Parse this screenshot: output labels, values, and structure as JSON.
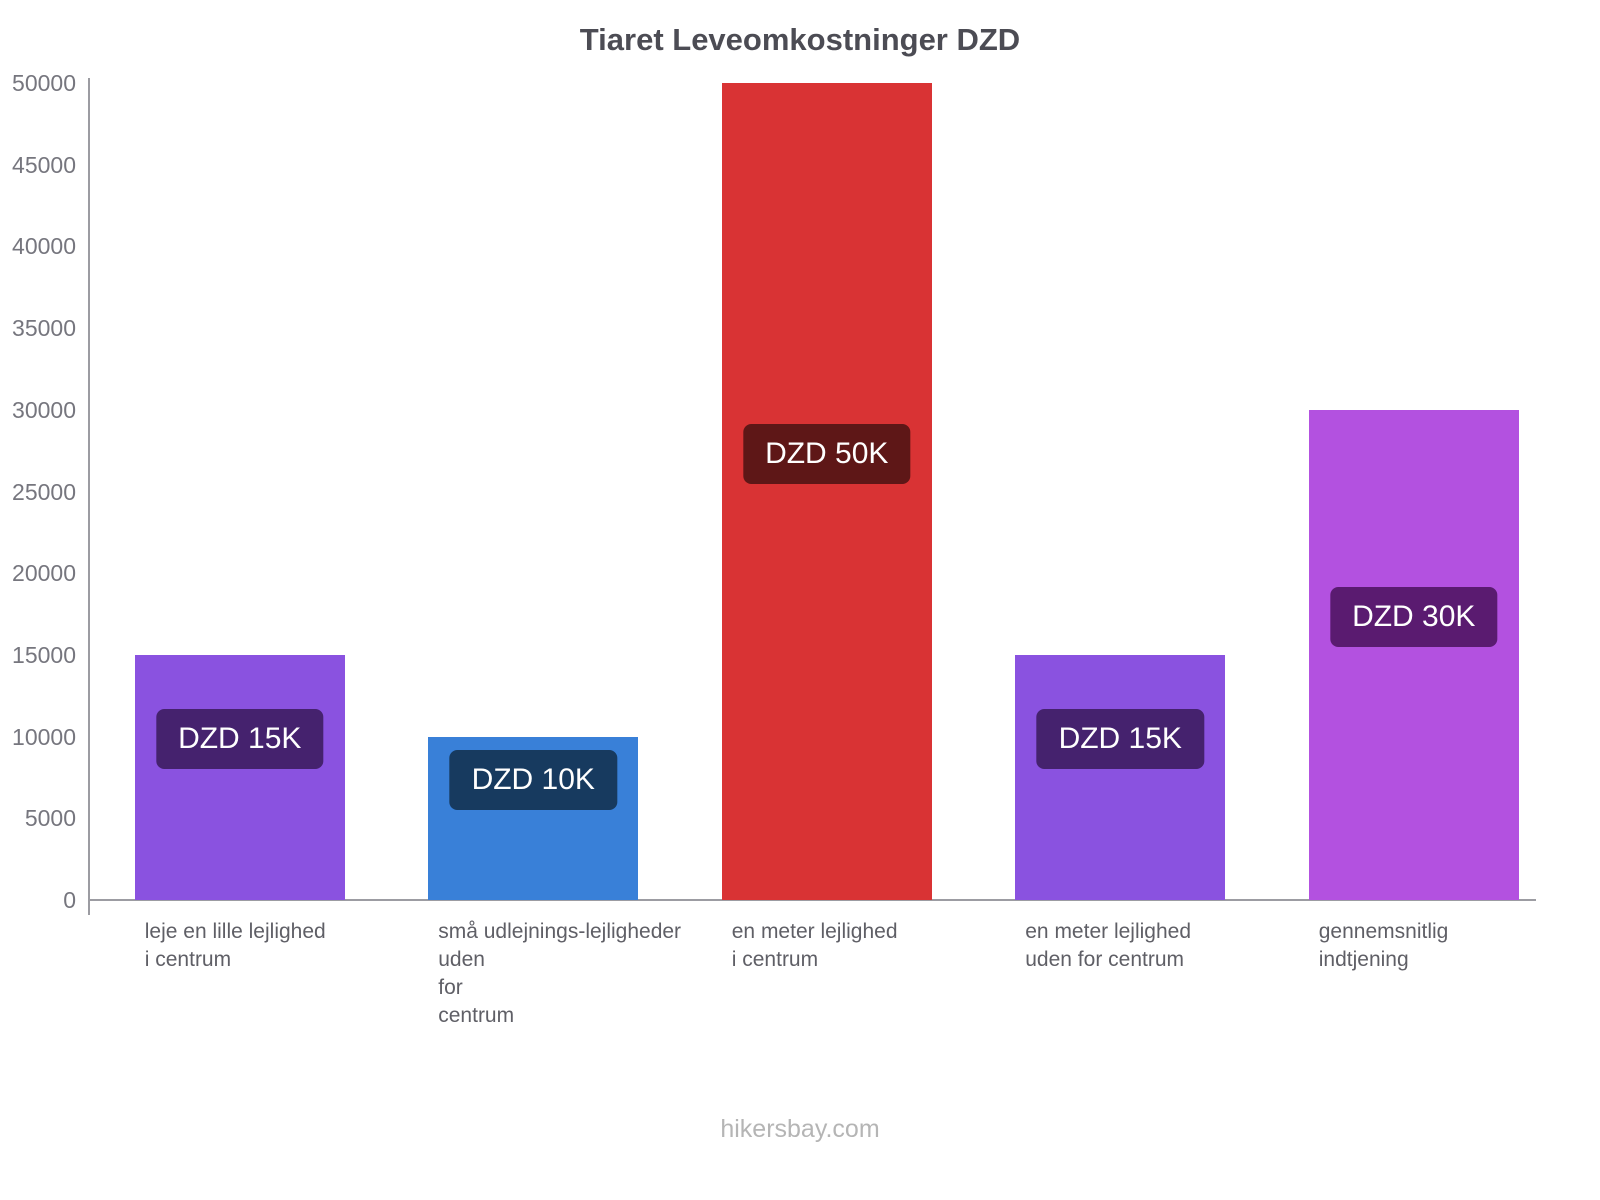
{
  "title": "Tiaret Leveomkostninger DZD",
  "footer": "hikersbay.com",
  "chart_data": {
    "type": "bar",
    "title": "Tiaret Leveomkostninger DZD",
    "ylabel": "",
    "xlabel": "",
    "ylim": [
      0,
      50000
    ],
    "yticks": [
      0,
      5000,
      10000,
      15000,
      20000,
      25000,
      30000,
      35000,
      40000,
      45000,
      50000
    ],
    "grid": false,
    "legend": false,
    "categories": [
      "leje en lille lejlighed i centrum",
      "små udlejnings-lejligheder uden for centrum",
      "en meter lejlighed i centrum",
      "en meter lejlighed uden for centrum",
      "gennemsnitlig indtjening"
    ],
    "category_display_lines": [
      [
        "leje en lille lejlighed",
        "i centrum"
      ],
      [
        "små udlejnings-lejligheder",
        "uden",
        "for",
        "centrum"
      ],
      [
        "en meter lejlighed",
        "i centrum"
      ],
      [
        "en meter lejlighed",
        "uden for centrum"
      ],
      [
        "gennemsnitlig",
        "indtjening"
      ]
    ],
    "values": [
      15000,
      10000,
      50000,
      15000,
      30000
    ],
    "bar_labels": [
      "DZD 15K",
      "DZD 10K",
      "DZD 50K",
      "DZD 15K",
      "DZD 30K"
    ],
    "bar_colors": [
      "#8a52e0",
      "#3980d8",
      "#d93334",
      "#8a52e0",
      "#b351e0"
    ],
    "badge_colors": [
      "#45226e",
      "#173a5f",
      "#5e1717",
      "#45226e",
      "#5a1b70"
    ],
    "currency": "DZD"
  }
}
